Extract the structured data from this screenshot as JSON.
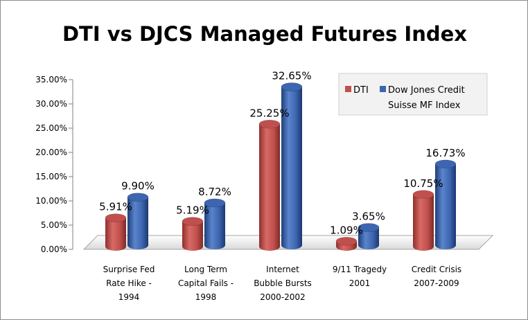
{
  "chart_data": {
    "type": "bar",
    "title": "DTI vs DJCS Managed Futures Index",
    "categories": [
      [
        "Surprise Fed",
        "Rate Hike -",
        "1994"
      ],
      [
        "Long Term",
        "Capital Fails -",
        "1998"
      ],
      [
        "Internet",
        "Bubble Bursts",
        "2000-2002"
      ],
      [
        "9/11 Tragedy",
        "2001"
      ],
      [
        "Credit Crisis",
        "2007-2009"
      ]
    ],
    "series": [
      {
        "name": "DTI",
        "values": [
          5.91,
          5.19,
          25.25,
          1.09,
          10.75
        ],
        "labels": [
          "5.91%",
          "5.19%",
          "25.25%",
          "1.09%",
          "10.75%"
        ],
        "color": "#c0504d"
      },
      {
        "name": "Dow Jones Credit Suisse MF Index",
        "legend_lines": [
          "Dow Jones Credit",
          "Suisse MF Index"
        ],
        "values": [
          9.9,
          8.72,
          32.65,
          3.65,
          16.73
        ],
        "labels": [
          "9.90%",
          "8.72%",
          "32.65%",
          "3.65%",
          "16.73%"
        ],
        "color": "#3d66b0"
      }
    ],
    "y_ticks": [
      "0.00%",
      "5.00%",
      "10.00%",
      "15.00%",
      "20.00%",
      "25.00%",
      "30.00%",
      "35.00%"
    ],
    "ylim": [
      0,
      35
    ],
    "ylabel": "",
    "xlabel": "",
    "grid": false,
    "legend_position": "top-right",
    "style": "3d-cylinder"
  }
}
